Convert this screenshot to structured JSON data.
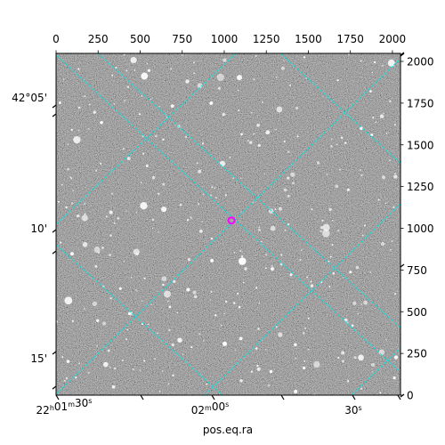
{
  "chart_data": {
    "type": "image",
    "description_free": true,
    "xlabel": "pos.eq.ra",
    "pixel_axes": {
      "x_ticks": [
        0,
        250,
        500,
        750,
        1000,
        1250,
        1500,
        1750,
        2000
      ],
      "x_tick_labels": [
        "0",
        "250",
        "500",
        "750",
        "1000",
        "1250",
        "1500",
        "1750",
        "2000"
      ],
      "y_ticks": [
        0,
        250,
        500,
        750,
        1000,
        1250,
        1500,
        1750,
        2000
      ],
      "y_tick_labels": [
        "0",
        "250",
        "500",
        "750",
        "1000",
        "1250",
        "1500",
        "1750",
        "2000"
      ],
      "xlim": [
        0,
        2048
      ],
      "ylim": [
        0,
        2048
      ]
    },
    "world_axes": {
      "ra_tick_labels": [
        {
          "h": "22",
          "hu": "h",
          "m": "01",
          "mu": "m",
          "s": "30",
          "su": "s"
        },
        {
          "h": "",
          "hu": "",
          "m": "02",
          "mu": "m",
          "s": "00",
          "su": "s"
        },
        {
          "h": "",
          "hu": "",
          "m": "",
          "mu": "",
          "s": "30",
          "su": "s"
        }
      ],
      "dec_tick_labels": [
        "42°05'",
        "10'",
        "15'"
      ]
    },
    "grid": true,
    "grid_color": "#00e5e5",
    "marker": {
      "x": 1043,
      "y": 1047,
      "color": "#ff00ff",
      "label": ""
    },
    "colormap": "grayscale"
  },
  "colors": {
    "background": "#ffffff",
    "image_mid": "#6e6e6e",
    "grid": "#00e5e5",
    "marker": "#ff00ff",
    "stars": "#ffffff"
  }
}
